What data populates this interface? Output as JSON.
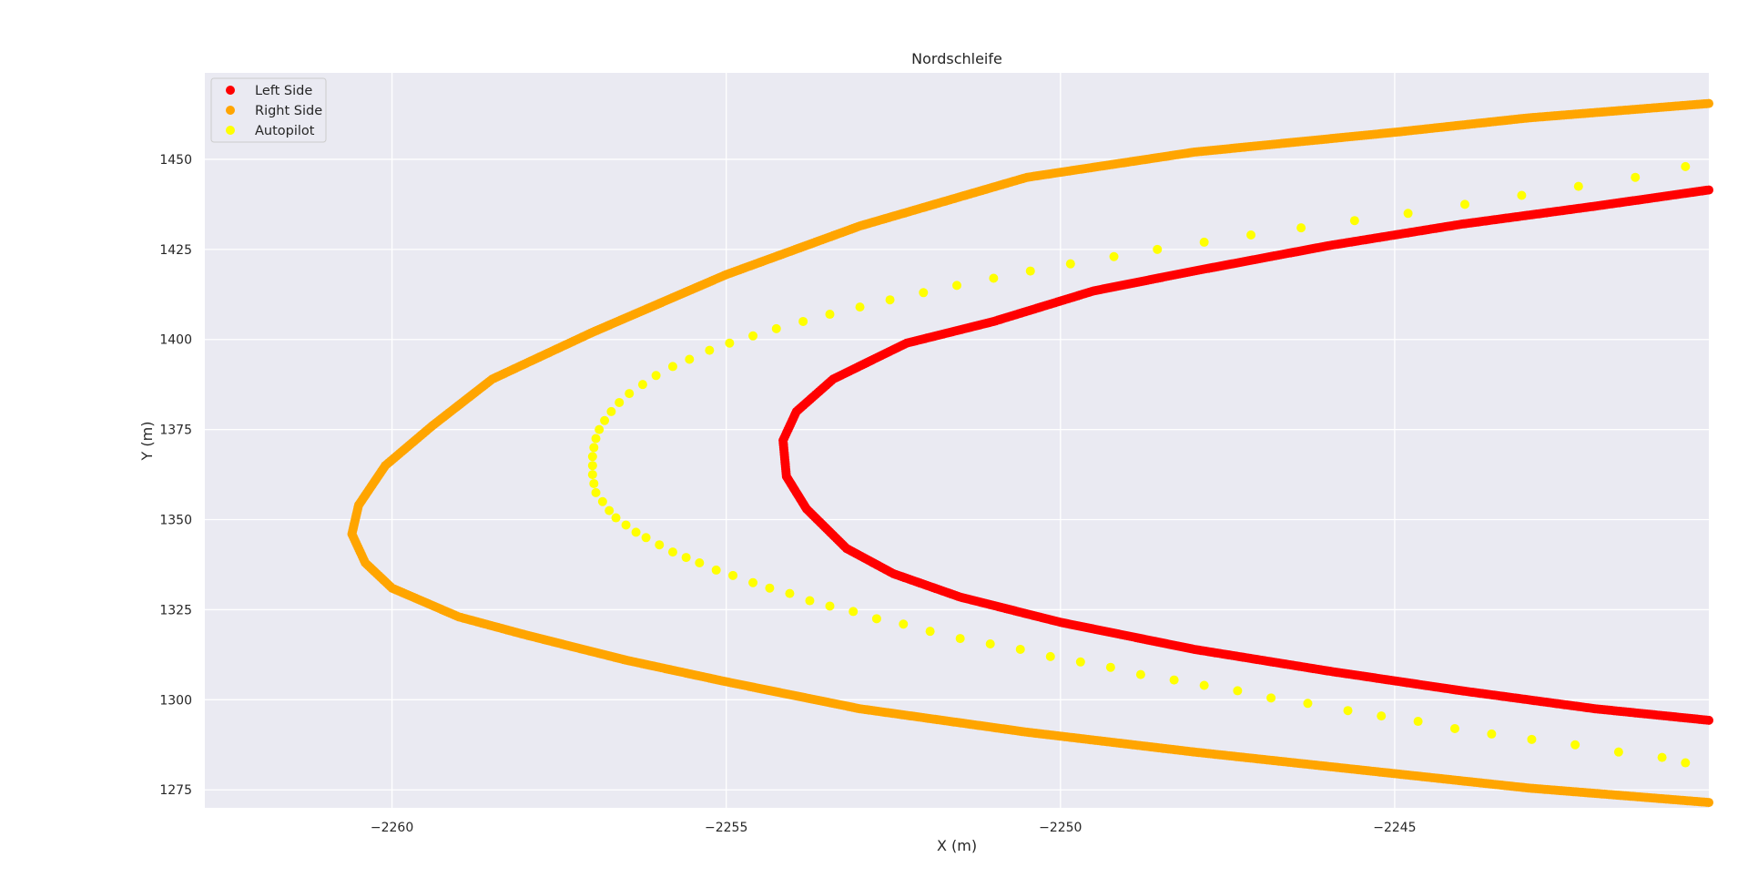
{
  "chart_data": {
    "type": "scatter",
    "title": "Nordschleife",
    "xlabel": "X (m)",
    "ylabel": "Y (m)",
    "xlim": [
      -2262.8,
      -2240.3
    ],
    "ylim": [
      1270,
      1474
    ],
    "xticks": [
      -2260,
      -2255,
      -2250,
      -2245
    ],
    "xtick_labels": [
      "−2260",
      "−2255",
      "−2250",
      "−2245"
    ],
    "yticks": [
      1275,
      1300,
      1325,
      1350,
      1375,
      1400,
      1425,
      1450
    ],
    "ytick_labels": [
      "1275",
      "1300",
      "1325",
      "1350",
      "1375",
      "1400",
      "1425",
      "1450"
    ],
    "grid": true,
    "legend_position": "top-left",
    "series": [
      {
        "name": "Left Side",
        "color": "#ff0000",
        "points": [
          [
            -2240.3,
            1294.3
          ],
          [
            -2242,
            1297.5
          ],
          [
            -2244,
            1302.5
          ],
          [
            -2246,
            1308
          ],
          [
            -2248,
            1314
          ],
          [
            -2250,
            1321.5
          ],
          [
            -2251.5,
            1328.5
          ],
          [
            -2252.5,
            1335
          ],
          [
            -2253.2,
            1342
          ],
          [
            -2253.8,
            1353
          ],
          [
            -2254.1,
            1362
          ],
          [
            -2254.15,
            1372
          ],
          [
            -2253.95,
            1380
          ],
          [
            -2253.4,
            1389
          ],
          [
            -2252.3,
            1399
          ],
          [
            -2251,
            1405
          ],
          [
            -2249.5,
            1413.5
          ],
          [
            -2248,
            1419
          ],
          [
            -2246,
            1426
          ],
          [
            -2244,
            1432
          ],
          [
            -2242,
            1437
          ],
          [
            -2240.3,
            1441.5
          ]
        ]
      },
      {
        "name": "Right Side",
        "color": "#ffa500",
        "points": [
          [
            -2240.3,
            1271.5
          ],
          [
            -2243,
            1275.5
          ],
          [
            -2245.5,
            1280.5
          ],
          [
            -2248,
            1285.5
          ],
          [
            -2250.5,
            1291
          ],
          [
            -2253,
            1297.5
          ],
          [
            -2255,
            1305
          ],
          [
            -2256.5,
            1311
          ],
          [
            -2258,
            1318
          ],
          [
            -2259,
            1323
          ],
          [
            -2260,
            1331
          ],
          [
            -2260.4,
            1338
          ],
          [
            -2260.6,
            1346
          ],
          [
            -2260.5,
            1354
          ],
          [
            -2260.1,
            1365
          ],
          [
            -2259.4,
            1376
          ],
          [
            -2258.5,
            1389
          ],
          [
            -2257,
            1402
          ],
          [
            -2255,
            1418
          ],
          [
            -2253,
            1431.5
          ],
          [
            -2250.5,
            1445
          ],
          [
            -2248,
            1452
          ],
          [
            -2245,
            1457.5
          ],
          [
            -2243,
            1461.5
          ],
          [
            -2240.3,
            1465.5
          ]
        ]
      },
      {
        "name": "Autopilot",
        "color": "#ffff00",
        "points": [
          [
            -2240.65,
            1282.5
          ],
          [
            -2241,
            1284
          ],
          [
            -2241.65,
            1285.5
          ],
          [
            -2242.3,
            1287.5
          ],
          [
            -2242.95,
            1289
          ],
          [
            -2243.55,
            1290.5
          ],
          [
            -2244.1,
            1292
          ],
          [
            -2244.65,
            1294
          ],
          [
            -2245.2,
            1295.5
          ],
          [
            -2245.7,
            1297
          ],
          [
            -2246.3,
            1299
          ],
          [
            -2246.85,
            1300.5
          ],
          [
            -2247.35,
            1302.5
          ],
          [
            -2247.85,
            1304
          ],
          [
            -2248.3,
            1305.5
          ],
          [
            -2248.8,
            1307
          ],
          [
            -2249.25,
            1309
          ],
          [
            -2249.7,
            1310.5
          ],
          [
            -2250.15,
            1312
          ],
          [
            -2250.6,
            1314
          ],
          [
            -2251.05,
            1315.5
          ],
          [
            -2251.5,
            1317
          ],
          [
            -2251.95,
            1319
          ],
          [
            -2252.35,
            1321
          ],
          [
            -2252.75,
            1322.5
          ],
          [
            -2253.1,
            1324.5
          ],
          [
            -2253.45,
            1326
          ],
          [
            -2253.75,
            1327.5
          ],
          [
            -2254.05,
            1329.5
          ],
          [
            -2254.35,
            1331
          ],
          [
            -2254.6,
            1332.5
          ],
          [
            -2254.9,
            1334.5
          ],
          [
            -2255.15,
            1336
          ],
          [
            -2255.4,
            1338
          ],
          [
            -2255.6,
            1339.5
          ],
          [
            -2255.8,
            1341
          ],
          [
            -2256,
            1343
          ],
          [
            -2256.2,
            1345
          ],
          [
            -2256.35,
            1346.5
          ],
          [
            -2256.5,
            1348.5
          ],
          [
            -2256.65,
            1350.5
          ],
          [
            -2256.75,
            1352.5
          ],
          [
            -2256.85,
            1355
          ],
          [
            -2256.95,
            1357.5
          ],
          [
            -2256.98,
            1360
          ],
          [
            -2257,
            1362.5
          ],
          [
            -2257,
            1365
          ],
          [
            -2257,
            1367.5
          ],
          [
            -2256.98,
            1370
          ],
          [
            -2256.95,
            1372.5
          ],
          [
            -2256.9,
            1375
          ],
          [
            -2256.82,
            1377.5
          ],
          [
            -2256.72,
            1380
          ],
          [
            -2256.6,
            1382.5
          ],
          [
            -2256.45,
            1385
          ],
          [
            -2256.25,
            1387.5
          ],
          [
            -2256.05,
            1390
          ],
          [
            -2255.8,
            1392.5
          ],
          [
            -2255.55,
            1394.5
          ],
          [
            -2255.25,
            1397
          ],
          [
            -2254.95,
            1399
          ],
          [
            -2254.6,
            1401
          ],
          [
            -2254.25,
            1403
          ],
          [
            -2253.85,
            1405
          ],
          [
            -2253.45,
            1407
          ],
          [
            -2253,
            1409
          ],
          [
            -2252.55,
            1411
          ],
          [
            -2252.05,
            1413
          ],
          [
            -2251.55,
            1415
          ],
          [
            -2251,
            1417
          ],
          [
            -2250.45,
            1419
          ],
          [
            -2249.85,
            1421
          ],
          [
            -2249.2,
            1423
          ],
          [
            -2248.55,
            1425
          ],
          [
            -2247.85,
            1427
          ],
          [
            -2247.15,
            1429
          ],
          [
            -2246.4,
            1431
          ],
          [
            -2245.6,
            1433
          ],
          [
            -2244.8,
            1435
          ],
          [
            -2243.95,
            1437.5
          ],
          [
            -2243.1,
            1440
          ],
          [
            -2242.25,
            1442.5
          ],
          [
            -2241.4,
            1445
          ],
          [
            -2240.65,
            1448
          ]
        ]
      }
    ]
  }
}
